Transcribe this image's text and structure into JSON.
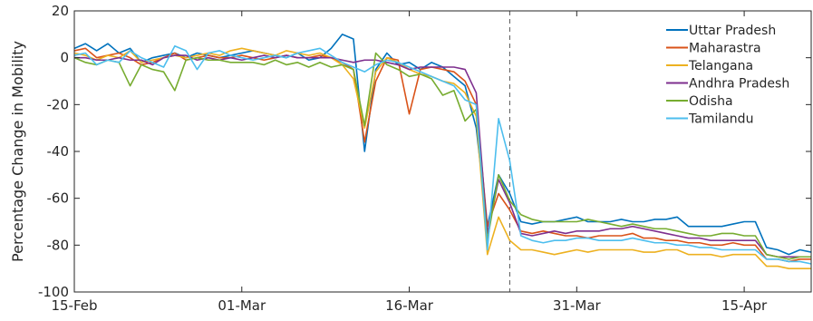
{
  "chart_data": {
    "type": "line",
    "title": "",
    "xlabel": "",
    "ylabel": "Percentage Change in Mobility",
    "ylim": [
      -100,
      20
    ],
    "yticks": [
      20,
      0,
      -20,
      -40,
      -60,
      -80,
      -100
    ],
    "xlim": [
      "2020-02-15",
      "2020-04-21"
    ],
    "xticks": [
      {
        "date": "2020-02-15",
        "label": "15-Feb"
      },
      {
        "date": "2020-03-01",
        "label": "01-Mar"
      },
      {
        "date": "2020-03-16",
        "label": "16-Mar"
      },
      {
        "date": "2020-03-31",
        "label": "31-Mar"
      },
      {
        "date": "2020-04-15",
        "label": "15-Apr"
      }
    ],
    "vline_date": "2020-03-25",
    "grid": false,
    "legend_position": "top-right",
    "x": [
      "2020-02-15",
      "2020-02-16",
      "2020-02-17",
      "2020-02-18",
      "2020-02-19",
      "2020-02-20",
      "2020-02-21",
      "2020-02-22",
      "2020-02-23",
      "2020-02-24",
      "2020-02-25",
      "2020-02-26",
      "2020-02-27",
      "2020-02-28",
      "2020-02-29",
      "2020-03-01",
      "2020-03-02",
      "2020-03-03",
      "2020-03-04",
      "2020-03-05",
      "2020-03-06",
      "2020-03-07",
      "2020-03-08",
      "2020-03-09",
      "2020-03-10",
      "2020-03-11",
      "2020-03-12",
      "2020-03-13",
      "2020-03-14",
      "2020-03-15",
      "2020-03-16",
      "2020-03-17",
      "2020-03-18",
      "2020-03-19",
      "2020-03-20",
      "2020-03-21",
      "2020-03-22",
      "2020-03-23",
      "2020-03-24",
      "2020-03-25",
      "2020-03-26",
      "2020-03-27",
      "2020-03-28",
      "2020-03-29",
      "2020-03-30",
      "2020-03-31",
      "2020-04-01",
      "2020-04-02",
      "2020-04-03",
      "2020-04-04",
      "2020-04-05",
      "2020-04-06",
      "2020-04-07",
      "2020-04-08",
      "2020-04-09",
      "2020-04-10",
      "2020-04-11",
      "2020-04-12",
      "2020-04-13",
      "2020-04-14",
      "2020-04-15",
      "2020-04-16",
      "2020-04-17",
      "2020-04-18",
      "2020-04-19",
      "2020-04-20",
      "2020-04-21"
    ],
    "series": [
      {
        "name": "Uttar Pradesh",
        "color": "#0072BD",
        "values": [
          4,
          6,
          3,
          6,
          2,
          4,
          -2,
          0,
          1,
          2,
          0,
          2,
          1,
          0,
          1,
          2,
          3,
          2,
          1,
          0,
          2,
          -1,
          0,
          4,
          10,
          8,
          -40,
          -5,
          2,
          -3,
          -2,
          -5,
          -2,
          -4,
          -8,
          -12,
          -30,
          -72,
          -50,
          -58,
          -70,
          -71,
          -70,
          -70,
          -69,
          -68,
          -70,
          -70,
          -70,
          -69,
          -70,
          -70,
          -69,
          -69,
          -68,
          -72,
          -72,
          -72,
          -72,
          -71,
          -70,
          -70,
          -81,
          -82,
          -84,
          -82,
          -83
        ]
      },
      {
        "name": "Maharastra",
        "color": "#D95319",
        "values": [
          3,
          4,
          0,
          1,
          2,
          0,
          -3,
          -2,
          0,
          2,
          -1,
          0,
          1,
          0,
          0,
          1,
          0,
          -1,
          0,
          1,
          0,
          0,
          1,
          0,
          -2,
          -5,
          -36,
          -10,
          0,
          -1,
          -24,
          -5,
          -4,
          -5,
          -6,
          -10,
          -20,
          -72,
          -58,
          -65,
          -74,
          -75,
          -74,
          -75,
          -76,
          -76,
          -77,
          -76,
          -76,
          -76,
          -75,
          -77,
          -77,
          -78,
          -78,
          -79,
          -79,
          -80,
          -80,
          -79,
          -80,
          -80,
          -86,
          -86,
          -87,
          -86,
          -86
        ]
      },
      {
        "name": "Telangana",
        "color": "#EDB120",
        "values": [
          2,
          1,
          -1,
          1,
          0,
          3,
          -2,
          -1,
          0,
          1,
          0,
          1,
          2,
          1,
          3,
          4,
          3,
          2,
          1,
          3,
          2,
          1,
          2,
          0,
          -3,
          -9,
          -30,
          -6,
          0,
          -2,
          -5,
          -7,
          -8,
          -10,
          -11,
          -15,
          -25,
          -84,
          -68,
          -78,
          -82,
          -82,
          -83,
          -84,
          -83,
          -82,
          -83,
          -82,
          -82,
          -82,
          -82,
          -83,
          -83,
          -82,
          -82,
          -84,
          -84,
          -84,
          -85,
          -84,
          -84,
          -84,
          -89,
          -89,
          -90,
          -90,
          -90
        ]
      },
      {
        "name": "Andhra Pradesh",
        "color": "#7E2F8E",
        "values": [
          0,
          0,
          -1,
          -1,
          0,
          -1,
          -1,
          -3,
          0,
          1,
          1,
          -1,
          0,
          -1,
          0,
          -1,
          0,
          1,
          0,
          1,
          0,
          0,
          0,
          0,
          -1,
          -2,
          -1,
          -1,
          -2,
          -3,
          -5,
          -4,
          -4,
          -4,
          -4,
          -5,
          -15,
          -75,
          -52,
          -62,
          -75,
          -76,
          -75,
          -74,
          -75,
          -74,
          -74,
          -74,
          -73,
          -73,
          -72,
          -73,
          -74,
          -75,
          -76,
          -77,
          -77,
          -78,
          -78,
          -78,
          -78,
          -78,
          -84,
          -85,
          -85,
          -85,
          -85
        ]
      },
      {
        "name": "Odisha",
        "color": "#77AC30",
        "values": [
          0,
          -2,
          -3,
          -1,
          -2,
          -12,
          -3,
          -5,
          -6,
          -14,
          -1,
          0,
          -1,
          -1,
          -2,
          -2,
          -2,
          -3,
          -1,
          -3,
          -2,
          -4,
          -2,
          -4,
          -3,
          -5,
          -29,
          2,
          -3,
          -5,
          -8,
          -7,
          -9,
          -16,
          -14,
          -27,
          -22,
          -78,
          -50,
          -61,
          -67,
          -69,
          -70,
          -70,
          -70,
          -70,
          -69,
          -70,
          -71,
          -72,
          -71,
          -72,
          -73,
          -73,
          -74,
          -75,
          -76,
          -76,
          -75,
          -75,
          -76,
          -76,
          -84,
          -85,
          -86,
          -85,
          -85
        ]
      },
      {
        "name": "Tamilandu",
        "color": "#4DBEEE",
        "values": [
          1,
          2,
          -3,
          -1,
          -2,
          3,
          0,
          -2,
          -4,
          5,
          3,
          -5,
          2,
          3,
          1,
          0,
          -1,
          0,
          1,
          0,
          2,
          3,
          4,
          1,
          -2,
          -4,
          -6,
          -3,
          -1,
          -2,
          -4,
          -6,
          -8,
          -10,
          -12,
          -18,
          -20,
          -82,
          -26,
          -44,
          -76,
          -78,
          -79,
          -78,
          -78,
          -77,
          -77,
          -78,
          -78,
          -78,
          -77,
          -78,
          -79,
          -79,
          -80,
          -80,
          -81,
          -81,
          -82,
          -82,
          -82,
          -82,
          -86,
          -86,
          -87,
          -87,
          -88
        ]
      }
    ]
  }
}
